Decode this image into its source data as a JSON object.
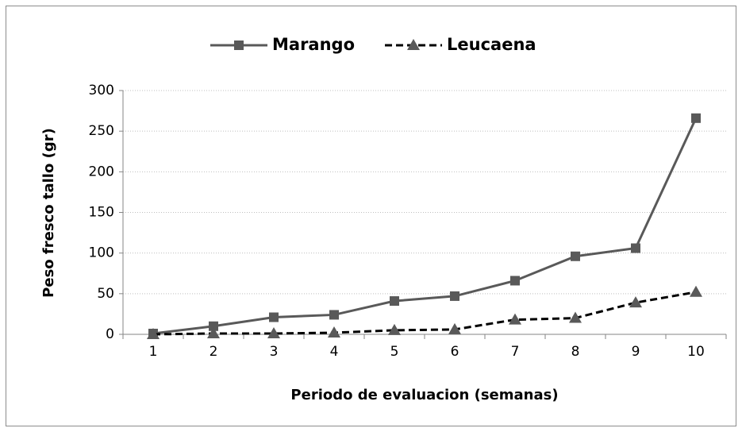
{
  "chart_data": {
    "type": "line",
    "x_label": "Periodo de evaluacion (semanas)",
    "y_label": "Peso fresco tallo (gr)",
    "categories": [
      "1",
      "2",
      "3",
      "4",
      "5",
      "6",
      "7",
      "8",
      "9",
      "10"
    ],
    "series": [
      {
        "name": "Marango",
        "color": "#595959",
        "dash": "solid",
        "marker": "square",
        "values": [
          1,
          10,
          21,
          24,
          41,
          47,
          66,
          96,
          106,
          266
        ]
      },
      {
        "name": "Leucaena",
        "color": "#000000",
        "marker_color": "#595959",
        "dash": "dashed",
        "marker": "triangle",
        "values": [
          0,
          1,
          1,
          2,
          5,
          6,
          18,
          20,
          39,
          52
        ]
      }
    ],
    "ylim": [
      0,
      300
    ],
    "yticks": [
      0,
      50,
      100,
      150,
      200,
      250,
      300
    ],
    "grid": true,
    "legend": "top"
  }
}
